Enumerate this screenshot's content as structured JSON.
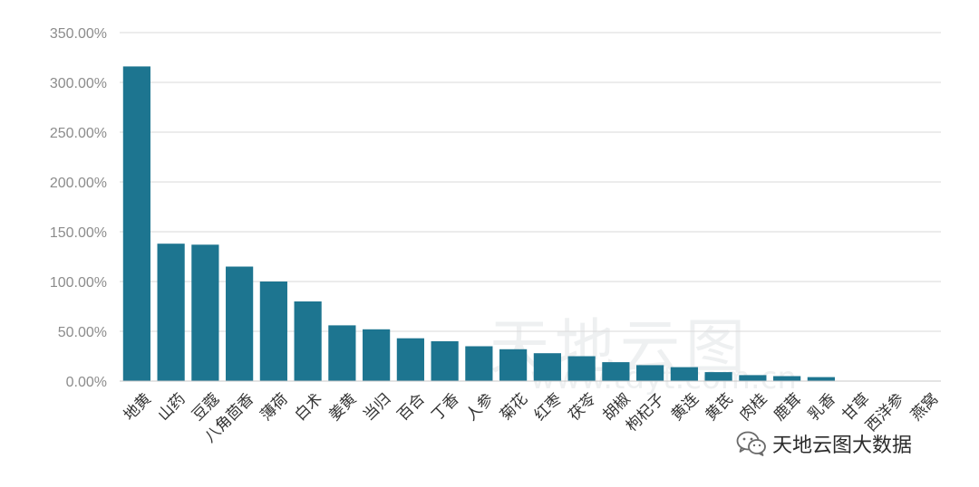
{
  "chart_data": {
    "type": "bar",
    "categories": [
      "地黄",
      "山药",
      "豆蔻",
      "八角茴香",
      "薄荷",
      "白术",
      "姜黄",
      "当归",
      "百合",
      "丁香",
      "人参",
      "菊花",
      "红枣",
      "茯苓",
      "胡椒",
      "枸杞子",
      "黄连",
      "黄芪",
      "肉桂",
      "鹿茸",
      "乳香",
      "甘草",
      "西洋参",
      "燕窝"
    ],
    "values": [
      316,
      138,
      137,
      115,
      100,
      80,
      56,
      52,
      43,
      40,
      35,
      32,
      28,
      25,
      19,
      16,
      14,
      9,
      6,
      5,
      4,
      0,
      0,
      0
    ],
    "yticks": [
      "0.00%",
      "50.00%",
      "100.00%",
      "150.00%",
      "200.00%",
      "250.00%",
      "300.00%",
      "350.00%"
    ],
    "ylim": [
      0,
      350
    ],
    "grid": true,
    "bar_color": "#1d7590"
  },
  "watermark": {
    "text": "天地云图大数据",
    "icon": "wechat-icon",
    "background_text": "天地云图",
    "background_url": "www.tdyt.com.cn"
  }
}
